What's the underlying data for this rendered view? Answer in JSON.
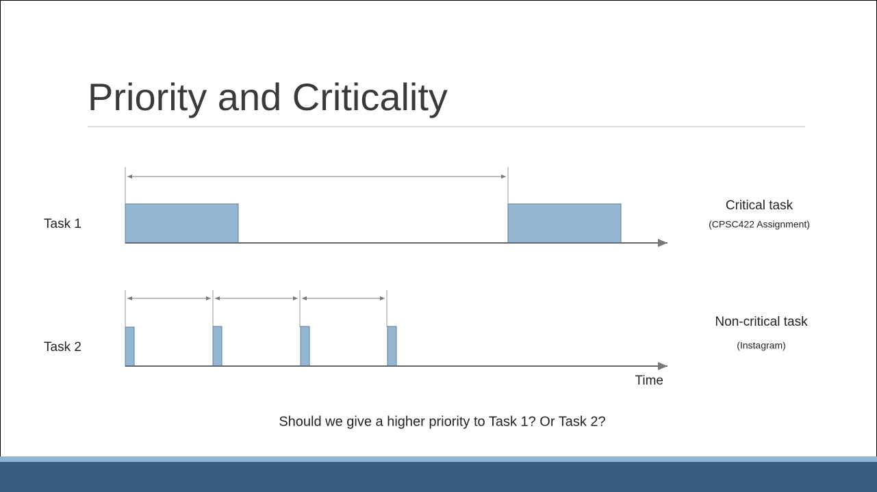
{
  "slide": {
    "title": "Priority and Criticality",
    "tasks": [
      {
        "label": "Task 1",
        "kind": "Critical task",
        "example": "(CPSC422 Assignment)"
      },
      {
        "label": "Task 2",
        "kind": "Non-critical task",
        "example": "(Instagram)"
      }
    ],
    "axis_label": "Time",
    "question": "Should we give a higher priority to Task 1? Or Task 2?"
  }
}
